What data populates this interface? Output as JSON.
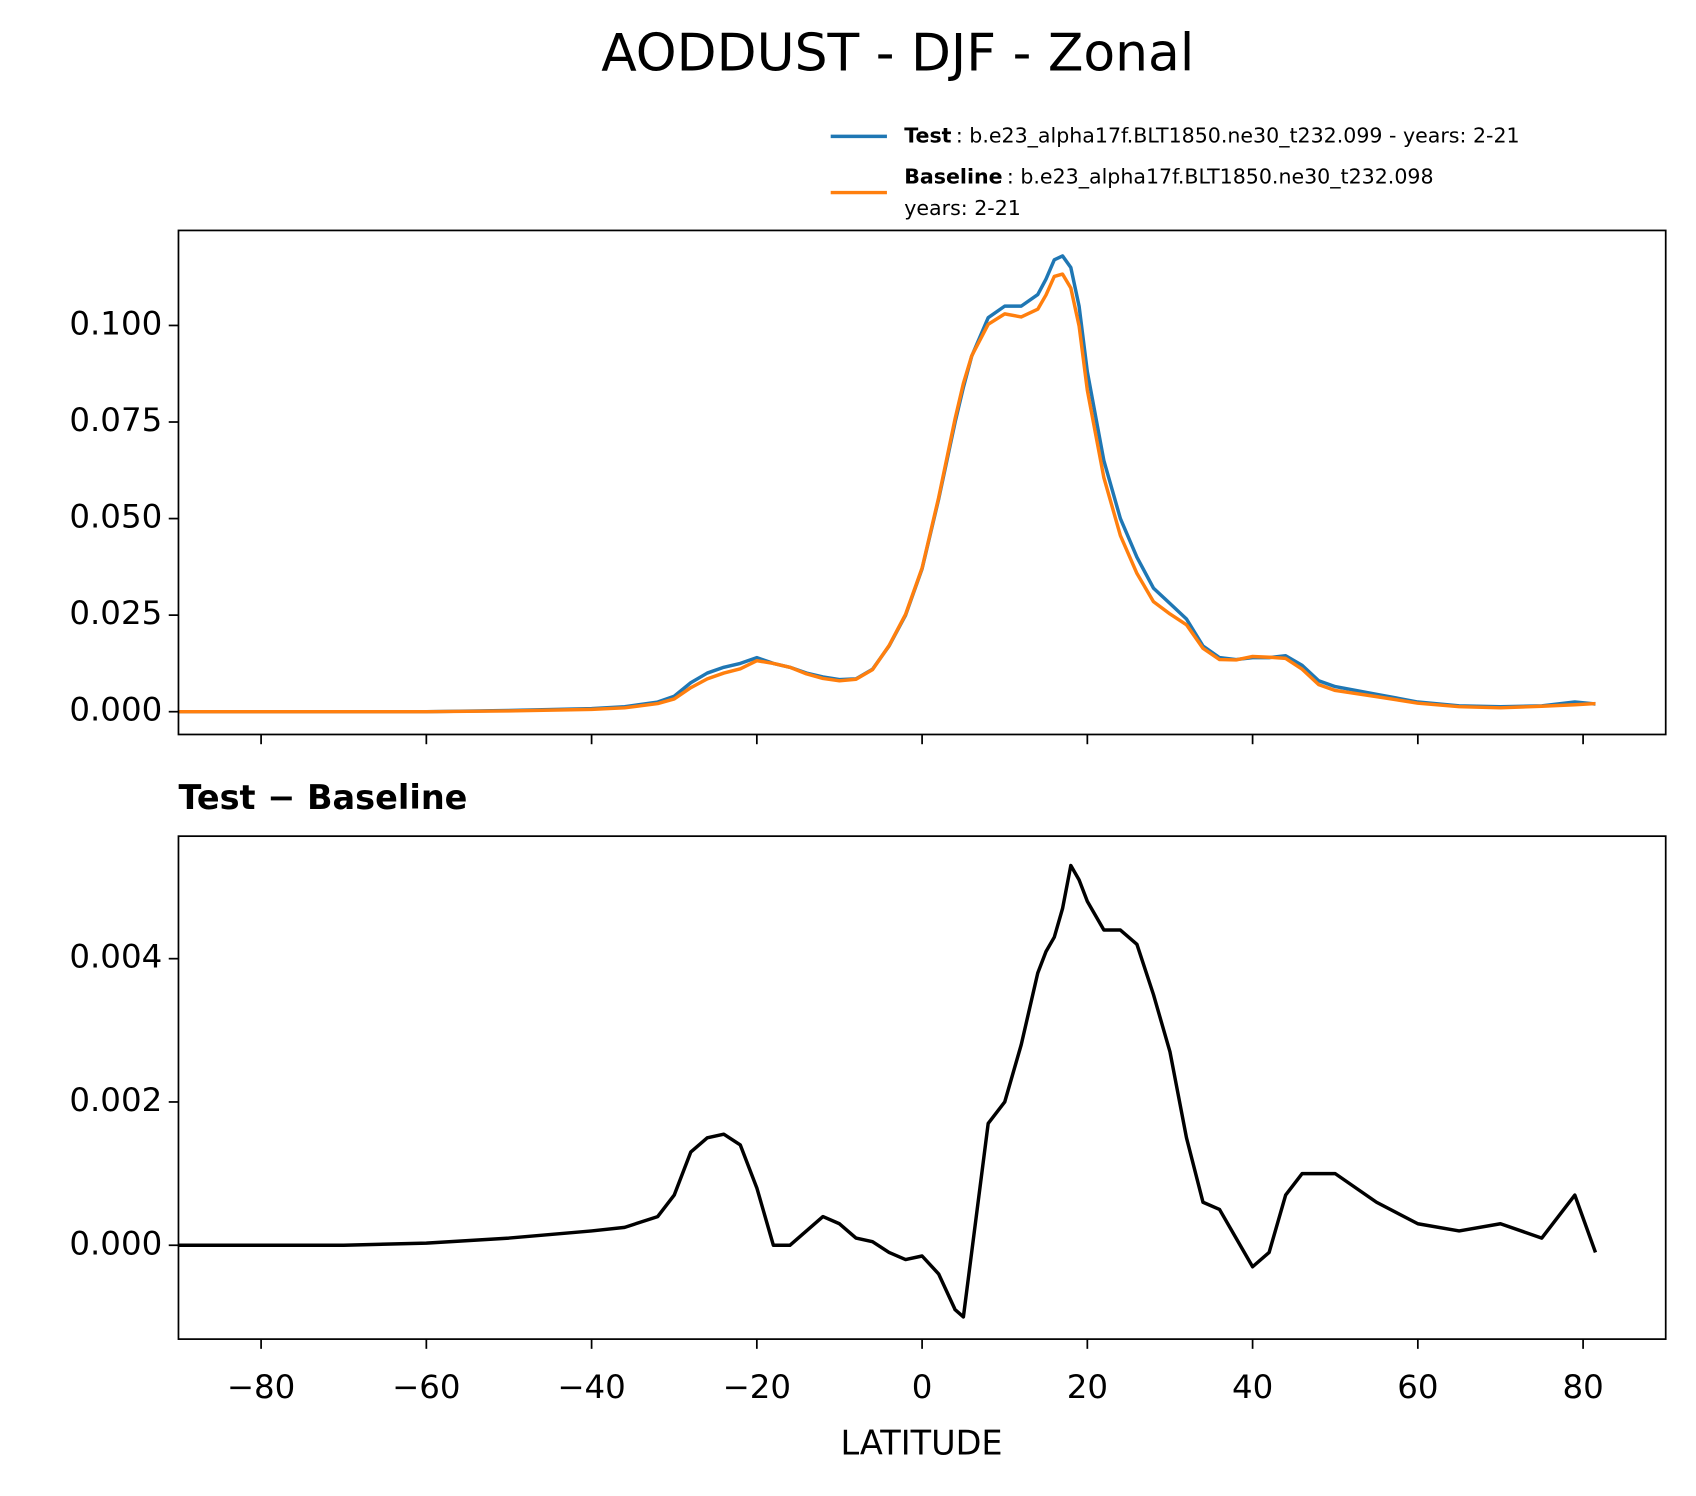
{
  "chart_data": [
    {
      "type": "line",
      "title": "AODDUST - DJF - Zonal",
      "x": [
        -90,
        -80,
        -70,
        -60,
        -50,
        -40,
        -36,
        -32,
        -30,
        -28,
        -26,
        -24,
        -22,
        -20,
        -18,
        -16,
        -14,
        -12,
        -10,
        -8,
        -6,
        -4,
        -2,
        0,
        2,
        4,
        5,
        6,
        8,
        10,
        12,
        14,
        15,
        16,
        17,
        18,
        19,
        20,
        22,
        24,
        26,
        28,
        30,
        32,
        34,
        36,
        38,
        40,
        42,
        44,
        46,
        48,
        50,
        55,
        60,
        65,
        70,
        75,
        79,
        81.5
      ],
      "series": [
        {
          "name": "Test",
          "label": [
            ": b.e23_alpha17f.BLT1850.ne30_t232.099 - years: 2-21"
          ],
          "color": "#1f77b4",
          "values": [
            0,
            0,
            0,
            0,
            0.0003,
            0.0008,
            0.0013,
            0.0025,
            0.004,
            0.0075,
            0.01,
            0.0115,
            0.0125,
            0.014,
            0.0125,
            0.0115,
            0.01,
            0.009,
            0.0083,
            0.0085,
            0.011,
            0.017,
            0.025,
            0.037,
            0.055,
            0.075,
            0.084,
            0.092,
            0.102,
            0.105,
            0.105,
            0.108,
            0.112,
            0.117,
            0.118,
            0.115,
            0.105,
            0.088,
            0.065,
            0.05,
            0.04,
            0.032,
            0.028,
            0.024,
            0.017,
            0.014,
            0.0135,
            0.014,
            0.014,
            0.0145,
            0.012,
            0.008,
            0.0065,
            0.0045,
            0.0025,
            0.0015,
            0.0013,
            0.0015,
            0.0025,
            0.002
          ]
        },
        {
          "name": "Baseline",
          "label": [
            ": b.e23_alpha17f.BLT1850.ne30_t232.098",
            "years: 2-21"
          ],
          "color": "#ff7f0e",
          "values": [
            0,
            0,
            0,
            0,
            0.0002,
            0.0006,
            0.001,
            0.0021,
            0.0033,
            0.0062,
            0.0085,
            0.01,
            0.0111,
            0.0132,
            0.0125,
            0.0115,
            0.0098,
            0.0086,
            0.008,
            0.0084,
            0.0109,
            0.0171,
            0.0252,
            0.0372,
            0.0554,
            0.0759,
            0.085,
            0.0921,
            0.1003,
            0.103,
            0.1022,
            0.1042,
            0.1079,
            0.1127,
            0.1133,
            0.1097,
            0.0999,
            0.0832,
            0.0606,
            0.0456,
            0.0358,
            0.0285,
            0.0253,
            0.0225,
            0.0164,
            0.0135,
            0.0134,
            0.0143,
            0.0141,
            0.0138,
            0.011,
            0.007,
            0.0055,
            0.0039,
            0.0022,
            0.0013,
            0.001,
            0.0014,
            0.0018,
            0.0021
          ]
        }
      ],
      "xlim": [
        -90,
        90
      ],
      "xticks": [
        -80,
        -60,
        -40,
        -20,
        0,
        20,
        40,
        60,
        80
      ],
      "ylim": [
        -0.0059,
        0.1246
      ],
      "yticks": [
        {
          "value": 0,
          "label": "0.000"
        },
        {
          "value": 0.025,
          "label": "0.025"
        },
        {
          "value": 0.05,
          "label": "0.050"
        },
        {
          "value": 0.075,
          "label": "0.075"
        },
        {
          "value": 0.1,
          "label": "0.100"
        }
      ]
    },
    {
      "type": "line",
      "title": "Test − Baseline",
      "xlabel": "LATITUDE",
      "x": [
        -90,
        -80,
        -70,
        -60,
        -50,
        -40,
        -36,
        -32,
        -30,
        -28,
        -26,
        -24,
        -22,
        -20,
        -18,
        -16,
        -14,
        -12,
        -10,
        -8,
        -6,
        -4,
        -2,
        0,
        2,
        4,
        5,
        6,
        8,
        10,
        12,
        14,
        15,
        16,
        17,
        18,
        19,
        20,
        22,
        24,
        26,
        28,
        30,
        32,
        34,
        36,
        38,
        40,
        42,
        44,
        46,
        48,
        50,
        55,
        60,
        65,
        70,
        75,
        79,
        81.5
      ],
      "color": "#000000",
      "values": [
        0,
        0,
        0,
        3e-05,
        0.0001,
        0.0002,
        0.00025,
        0.0004,
        0.0007,
        0.0013,
        0.0015,
        0.00155,
        0.0014,
        0.0008,
        0,
        0,
        0.0002,
        0.0004,
        0.0003,
        0.0001,
        5e-05,
        -0.0001,
        -0.0002,
        -0.00015,
        -0.0004,
        -0.0009,
        -0.001,
        -0.0001,
        0.0017,
        0.002,
        0.0028,
        0.0038,
        0.0041,
        0.0043,
        0.0047,
        0.0053,
        0.0051,
        0.0048,
        0.0044,
        0.0044,
        0.0042,
        0.0035,
        0.0027,
        0.0015,
        0.0006,
        0.0005,
        0.0001,
        -0.0003,
        -0.0001,
        0.0007,
        0.001,
        0.001,
        0.001,
        0.0006,
        0.0003,
        0.0002,
        0.0003,
        0.0001,
        0.0007,
        -0.0001
      ],
      "xlim": [
        -90,
        90
      ],
      "xticks": [
        {
          "value": -80,
          "label": "−80"
        },
        {
          "value": -60,
          "label": "−60"
        },
        {
          "value": -40,
          "label": "−40"
        },
        {
          "value": -20,
          "label": "−20"
        },
        0,
        20,
        40,
        60,
        80
      ],
      "ylim": [
        -0.00131,
        0.00571
      ],
      "yticks": [
        {
          "value": 0,
          "label": "0.000"
        },
        {
          "value": 0.002,
          "label": "0.002"
        },
        {
          "value": 0.004,
          "label": "0.004"
        }
      ]
    }
  ]
}
